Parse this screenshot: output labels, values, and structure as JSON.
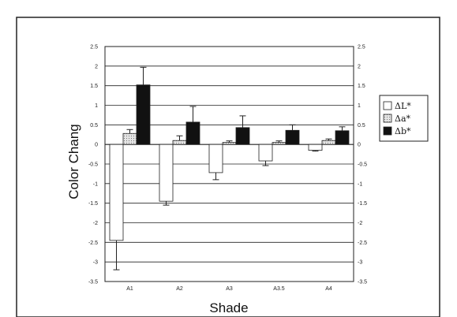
{
  "chart_data": {
    "type": "bar",
    "xlabel": "Shade",
    "ylabel": "Color Chang",
    "ylim": [
      -3.5,
      2.5
    ],
    "yticks": [
      2.5,
      2,
      1.5,
      1,
      0.5,
      0,
      -0.5,
      -1,
      -1.5,
      -2,
      -2.5,
      -3,
      -3.5
    ],
    "ytick_labels": [
      "2.5",
      "2",
      "1.5",
      "1",
      "0.5",
      "0",
      "-0.5",
      "-1",
      "-1.5",
      "-2",
      "-2.5",
      "-3",
      "-3.5"
    ],
    "categories": [
      "A1",
      "A2",
      "A3",
      "A3.5",
      "A4"
    ],
    "grid": true,
    "secondary_y_axis": true,
    "legend_position": "right",
    "series": [
      {
        "name": "ΔL*",
        "fill": "#ffffff",
        "pattern": "none",
        "values": [
          -2.45,
          -1.45,
          -0.72,
          -0.42,
          -0.15
        ],
        "errors": [
          0.75,
          0.1,
          0.18,
          0.12,
          0.02
        ]
      },
      {
        "name": "Δa*",
        "fill": "#dddddd",
        "pattern": "dots",
        "values": [
          0.28,
          0.1,
          0.05,
          0.05,
          0.1
        ],
        "errors": [
          0.1,
          0.12,
          0.04,
          0.04,
          0.04
        ]
      },
      {
        "name": "Δb*",
        "fill": "#111111",
        "pattern": "none",
        "values": [
          1.52,
          0.57,
          0.43,
          0.36,
          0.35
        ],
        "errors": [
          0.45,
          0.4,
          0.3,
          0.14,
          0.1
        ]
      }
    ]
  }
}
